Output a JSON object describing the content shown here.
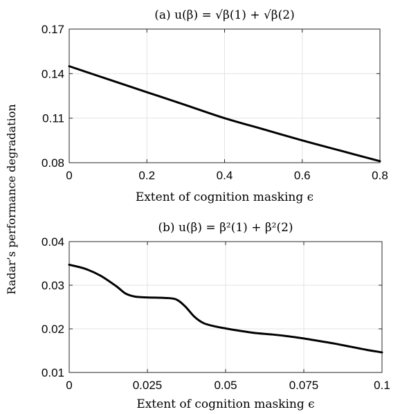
{
  "figure": {
    "ylabel": "Radar’s performance degradation"
  },
  "chart_data": [
    {
      "type": "line",
      "title": "(a) u(β) = √β(1) + √β(2)",
      "xlabel": "Extent of cognition masking ϵ",
      "ylabel": "Radar’s performance degradation",
      "xlim": [
        0,
        0.8
      ],
      "ylim": [
        0.08,
        0.17
      ],
      "xticks": [
        0,
        0.2,
        0.4,
        0.6,
        0.8
      ],
      "xtick_labels": [
        "0",
        "0.2",
        "0.4",
        "0.6",
        "0.8"
      ],
      "yticks": [
        0.08,
        0.11,
        0.14,
        0.17
      ],
      "ytick_labels": [
        "0.08",
        "0.11",
        "0.14",
        "0.17"
      ],
      "grid": true,
      "series": [
        {
          "color": "#000000",
          "x": [
            0,
            0.1,
            0.2,
            0.3,
            0.4,
            0.5,
            0.6,
            0.7,
            0.8
          ],
          "y": [
            0.145,
            0.1362,
            0.1275,
            0.1188,
            0.11,
            0.1025,
            0.095,
            0.088,
            0.081
          ]
        }
      ]
    },
    {
      "type": "line",
      "title": "(b) u(β) = β²(1) + β²(2)",
      "xlabel": "Extent of cognition masking ϵ",
      "ylabel": "Radar’s performance degradation",
      "xlim": [
        0,
        0.1
      ],
      "ylim": [
        0.01,
        0.04
      ],
      "xticks": [
        0,
        0.025,
        0.05,
        0.075,
        0.1
      ],
      "xtick_labels": [
        "0",
        "0.025",
        "0.05",
        "0.075",
        "0.1"
      ],
      "yticks": [
        0.01,
        0.02,
        0.03,
        0.04
      ],
      "ytick_labels": [
        "0.01",
        "0.02",
        "0.03",
        "0.04"
      ],
      "grid": true,
      "series": [
        {
          "color": "#000000",
          "x": [
            0,
            0.005,
            0.01,
            0.015,
            0.018,
            0.021,
            0.025,
            0.03,
            0.034,
            0.037,
            0.04,
            0.043,
            0.047,
            0.05,
            0.055,
            0.06,
            0.065,
            0.07,
            0.075,
            0.08,
            0.085,
            0.09,
            0.095,
            0.1
          ],
          "y": [
            0.0347,
            0.0338,
            0.0322,
            0.0298,
            0.0281,
            0.0274,
            0.0272,
            0.0271,
            0.0268,
            0.0252,
            0.0228,
            0.0213,
            0.0205,
            0.0201,
            0.0195,
            0.019,
            0.0187,
            0.0183,
            0.0178,
            0.0172,
            0.0166,
            0.0159,
            0.0152,
            0.0146
          ]
        }
      ]
    }
  ]
}
